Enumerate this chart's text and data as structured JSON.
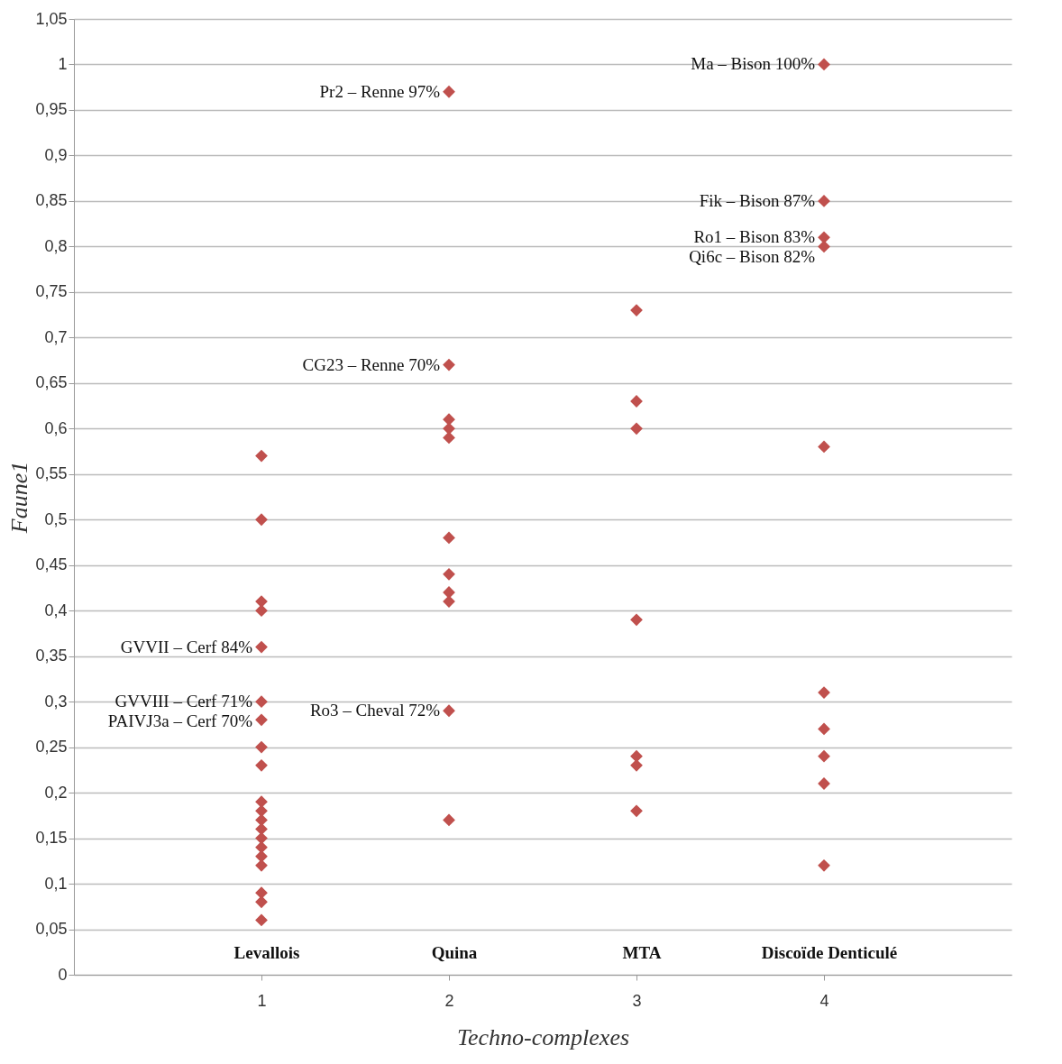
{
  "chart_data": {
    "type": "scatter",
    "xlabel": "Techno-complexes",
    "ylabel": "Faune1",
    "marker": "diamond",
    "grid": "y",
    "xlim": [
      0,
      5
    ],
    "xticks": [
      1,
      2,
      3,
      4
    ],
    "ylim": [
      0,
      1.05
    ],
    "yticks": [
      0,
      {
        "value": 0.05,
        "label": "0,05"
      },
      {
        "value": 0.1,
        "label": "0,1"
      },
      {
        "value": 0.15,
        "label": "0,15"
      },
      {
        "value": 0.2,
        "label": "0,2"
      },
      {
        "value": 0.25,
        "label": "0,25"
      },
      {
        "value": 0.3,
        "label": "0,3"
      },
      {
        "value": 0.35,
        "label": "0,35"
      },
      {
        "value": 0.4,
        "label": "0,4"
      },
      {
        "value": 0.45,
        "label": "0,45"
      },
      {
        "value": 0.5,
        "label": "0,5"
      },
      {
        "value": 0.55,
        "label": "0,55"
      },
      {
        "value": 0.6,
        "label": "0,6"
      },
      {
        "value": 0.65,
        "label": "0,65"
      },
      {
        "value": 0.7,
        "label": "0,7"
      },
      {
        "value": 0.75,
        "label": "0,75"
      },
      {
        "value": 0.8,
        "label": "0,8"
      },
      {
        "value": 0.85,
        "label": "0,85"
      },
      {
        "value": 0.9,
        "label": "0,9"
      },
      {
        "value": 0.95,
        "label": "0,95"
      },
      1,
      {
        "value": 1.05,
        "label": "1,05"
      }
    ],
    "series": [
      {
        "color": "#c0504d",
        "x": [
          1,
          1,
          1,
          1,
          1,
          1,
          1,
          1,
          1,
          1,
          1,
          1,
          1,
          1,
          1,
          1,
          1,
          1,
          1,
          1,
          2,
          2,
          2,
          2,
          2,
          2,
          2,
          2,
          2,
          2,
          2,
          3,
          3,
          3,
          3,
          3,
          3,
          3,
          4,
          4,
          4,
          4,
          4,
          4,
          4,
          4,
          4,
          4
        ],
        "values": [
          0.57,
          0.5,
          0.41,
          0.4,
          0.36,
          0.3,
          0.28,
          0.25,
          0.23,
          0.19,
          0.18,
          0.17,
          0.16,
          0.15,
          0.14,
          0.13,
          0.12,
          0.09,
          0.08,
          0.06,
          0.97,
          0.67,
          0.61,
          0.6,
          0.59,
          0.48,
          0.44,
          0.42,
          0.41,
          0.29,
          0.17,
          0.73,
          0.63,
          0.6,
          0.39,
          0.24,
          0.23,
          0.18,
          1.0,
          0.85,
          0.81,
          0.8,
          0.58,
          0.31,
          0.27,
          0.24,
          0.21,
          0.12
        ]
      }
    ],
    "annotations": [
      {
        "text": "Pr2 – Renne 97%",
        "x": 2,
        "y": 0.97
      },
      {
        "text": "CG23 – Renne 70%",
        "x": 2,
        "y": 0.67
      },
      {
        "text": "Ro3 – Cheval  72%",
        "x": 2,
        "y": 0.29
      },
      {
        "text": "Ma – Bison 100%",
        "x": 4,
        "y": 1.0
      },
      {
        "text": "Fik – Bison 87%",
        "x": 4,
        "y": 0.85
      },
      {
        "text": "Ro1 – Bison 83%",
        "x": 4,
        "y": 0.81
      },
      {
        "text": "Qi6c – Bison 82%",
        "x": 4,
        "y": 0.8
      },
      {
        "text": "GVVII – Cerf 84%",
        "x": 1,
        "y": 0.36
      },
      {
        "text": "GVVIII – Cerf 71%",
        "x": 1,
        "y": 0.3
      },
      {
        "text": "PAIVJ3a – Cerf  70%",
        "x": 1,
        "y": 0.28
      },
      "Levallois",
      "Quina",
      "MTA",
      "Discoïde Denticulé"
    ]
  }
}
